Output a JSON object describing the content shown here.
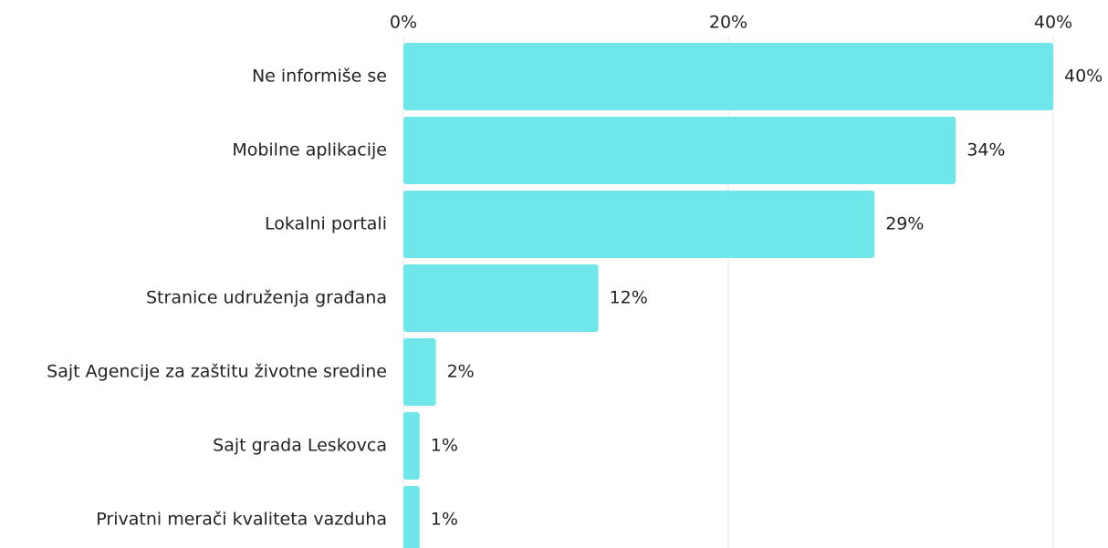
{
  "chart_data": {
    "type": "bar",
    "orientation": "horizontal",
    "categories": [
      "Ne informiše se",
      "Mobilne aplikacije",
      "Lokalni portali",
      "Stranice udruženja građana",
      "Sajt Agencije za zaštitu životne sredine",
      "Sajt grada Leskovca",
      "Privatni merači kvaliteta vazduha"
    ],
    "values": [
      40,
      34,
      29,
      12,
      2,
      1,
      1
    ],
    "value_labels": [
      "40%",
      "34%",
      "29%",
      "12%",
      "2%",
      "1%",
      "1%"
    ],
    "color": "#6ee6ea",
    "xlim": [
      0,
      40
    ],
    "xticks": [
      {
        "value": 0,
        "label": "0%"
      },
      {
        "value": 20,
        "label": "20%"
      },
      {
        "value": 40,
        "label": "40%"
      }
    ],
    "grid": true
  }
}
